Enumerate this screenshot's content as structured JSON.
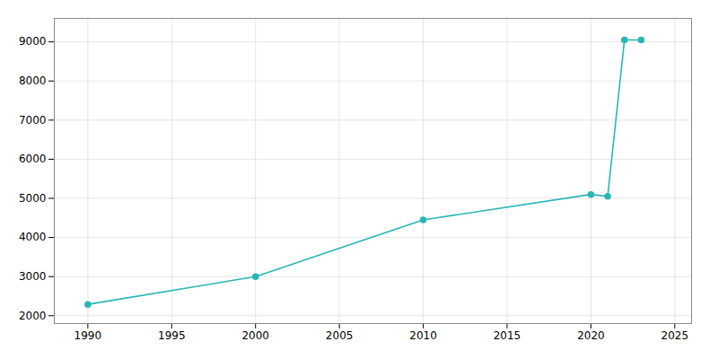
{
  "chart_data": {
    "type": "line",
    "x": [
      1990,
      2000,
      2010,
      2020,
      2021,
      2022,
      2023
    ],
    "values": [
      2290,
      3000,
      4450,
      5100,
      5050,
      9050,
      9050
    ],
    "color": "#2ab5b5",
    "marker": "circle",
    "line_style": "solid",
    "xlim": [
      1988,
      2026
    ],
    "xticks": [
      1990,
      1995,
      2000,
      2005,
      2010,
      2015,
      2020,
      2025
    ],
    "ylim": [
      1800,
      9600
    ],
    "yticks": [
      2000,
      3000,
      4000,
      5000,
      6000,
      7000,
      8000,
      9000
    ],
    "grid": true
  }
}
